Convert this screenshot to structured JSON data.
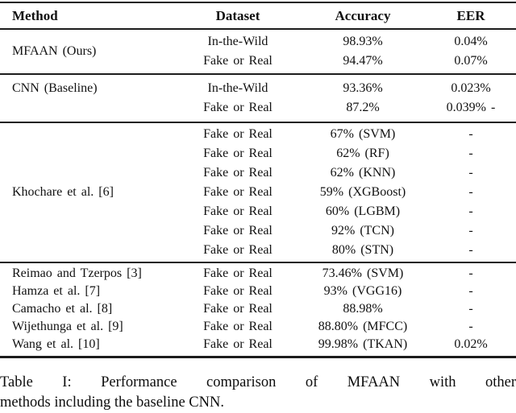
{
  "page": {
    "background_color": "#ffffff",
    "text_color": "#111111",
    "rule_color": "#1c1c1c"
  },
  "table": {
    "columns": [
      "Method",
      "Dataset",
      "Accuracy",
      "EER"
    ],
    "groups": [
      {
        "method": "MFAAN (Ours)",
        "rows": [
          {
            "dataset": "In-the-Wild",
            "accuracy": "98.93%",
            "eer": "0.04%"
          },
          {
            "dataset": "Fake or Real",
            "accuracy": "94.47%",
            "eer": "0.07%"
          }
        ]
      },
      {
        "method": "CNN (Baseline)",
        "rows": [
          {
            "dataset": "In-the-Wild",
            "accuracy": "93.36%",
            "eer": "0.023%"
          },
          {
            "dataset": "Fake or Real",
            "accuracy": "87.2%",
            "eer": "0.039% -"
          }
        ]
      },
      {
        "method": "Khochare et al. [6]",
        "rows": [
          {
            "dataset": "Fake or Real",
            "accuracy": "67% (SVM)",
            "eer": "-"
          },
          {
            "dataset": "Fake or Real",
            "accuracy": "62% (RF)",
            "eer": "-"
          },
          {
            "dataset": "Fake or Real",
            "accuracy": "62% (KNN)",
            "eer": "-"
          },
          {
            "dataset": "Fake or Real",
            "accuracy": "59% (XGBoost)",
            "eer": "-"
          },
          {
            "dataset": "Fake or Real",
            "accuracy": "60% (LGBM)",
            "eer": "-"
          },
          {
            "dataset": "Fake or Real",
            "accuracy": "92% (TCN)",
            "eer": "-"
          },
          {
            "dataset": "Fake or Real",
            "accuracy": "80% (STN)",
            "eer": "-"
          }
        ]
      },
      {
        "method": "Reimao and Tzerpos [3]",
        "rows": [
          {
            "dataset": "Fake or Real",
            "accuracy": "73.46% (SVM)",
            "eer": "-"
          }
        ]
      },
      {
        "method": "Hamza et al. [7]",
        "rows": [
          {
            "dataset": "Fake or Real",
            "accuracy": "93% (VGG16)",
            "eer": "-"
          }
        ]
      },
      {
        "method": "Camacho et al. [8]",
        "rows": [
          {
            "dataset": "Fake or Real",
            "accuracy": "88.98%",
            "eer": "-"
          }
        ]
      },
      {
        "method": "Wijethunga et al. [9]",
        "rows": [
          {
            "dataset": "Fake or Real",
            "accuracy": "88.80% (MFCC)",
            "eer": "-"
          }
        ]
      },
      {
        "method": "Wang et al. [10]",
        "rows": [
          {
            "dataset": "Fake or Real",
            "accuracy": "99.98% (TKAN)",
            "eer": "0.02%"
          }
        ]
      }
    ]
  },
  "caption": {
    "line1": "Table I: Performance comparison of MFAAN with other",
    "line2": "methods including the baseline CNN."
  }
}
